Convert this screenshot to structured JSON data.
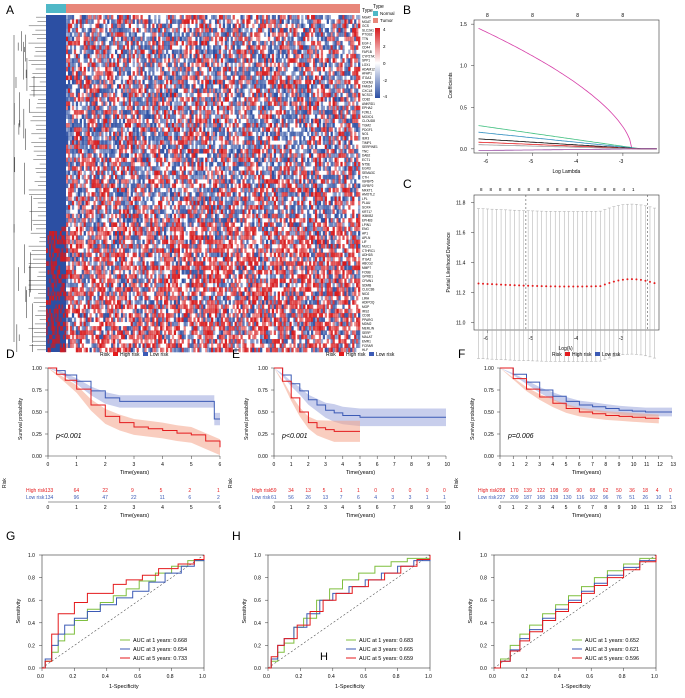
{
  "colors": {
    "high": "#e41a1c",
    "low": "#3b5ab5",
    "high_band": "#f4a48a",
    "low_band": "#9aa6dc",
    "hm_red": "#d7191c",
    "hm_blue": "#2c4fa3",
    "normal": "#4fb8c7",
    "tumor": "#e8877a",
    "roc_green": "#7fbf3f",
    "roc_blue": "#3b5ab5",
    "roc_red": "#e41a1c"
  },
  "panel_labels": [
    "A",
    "B",
    "C",
    "D",
    "E",
    "F",
    "G",
    "H",
    "I"
  ],
  "heatmap": {
    "type_label": "Type",
    "legend_normal": "Normal",
    "legend_tumor": "Tumor",
    "scale_ticks": [
      "4",
      "2",
      "0",
      "-2",
      "-4"
    ],
    "n_rows": 78,
    "n_cols": 150,
    "normal_cols": 13,
    "genes": [
      "MGAT",
      "MGAT",
      "GCS",
      "SLC2A1",
      "PTGS2",
      "TTN",
      "EGF-1",
      "CD44",
      "FAP1B",
      "CYP27A1",
      "SPP1",
      "LOX1",
      "ADAM12",
      "AFAP1",
      "ITGA3",
      "CDKN3",
      "FAM14",
      "CXCL8",
      "NCSC1",
      "CD82",
      "ANKRD1",
      "EPHA2",
      "F2RL1",
      "MOXD1",
      "CLOUD8",
      "TGM2",
      "PDGF1",
      "NO1",
      "IER3",
      "TIMP1",
      "SERPINE1",
      "TNC",
      "DAB2",
      "ECT1",
      "NT5E",
      "EGR3",
      "SEMA3C",
      "CTH",
      "IGFBP5",
      "IGFBP2",
      "MKKT1",
      "AMOTL2",
      "LPL",
      "PLAU",
      "SOX4",
      "KRT17",
      "IKBKB2",
      "EPHB3",
      "LPIN1",
      "ENG",
      "AP1",
      "APLN",
      "LIF",
      "MUC1",
      "CTHRC1",
      "ADH1B",
      "ITGA2",
      "ABCG2",
      "MMP7",
      "FOSB",
      "GPRD1",
      "CFMN1",
      "SDMB",
      "CLEC3B",
      "NID2",
      "LIRA",
      "ADIPOQ",
      "MGP",
      "IRS2",
      "CD36",
      "PPARG",
      "MDM2",
      "MERLIN",
      "SERP",
      "MALAT",
      "EMR1",
      "FCRAR",
      "HLF"
    ]
  },
  "lasso": {
    "coef_xlabel": "Log Lambda",
    "coef_ylabel": "Coefficients",
    "coef_top_ticks": [
      "8",
      "8",
      "8",
      "8"
    ],
    "coef_xticks": [
      "-6",
      "-5",
      "-4",
      "-3"
    ],
    "coef_yticks": [
      "1.5",
      "1.0",
      "0.5",
      "0.0"
    ],
    "cv_xlabel": "Log(λ)",
    "cv_ylabel": "Partial Likelihood Deviance",
    "cv_top_ticks": [
      "8",
      "8",
      "8",
      "8",
      "8",
      "8",
      "8",
      "8",
      "8",
      "8",
      "8",
      "8",
      "8",
      "8",
      "8",
      "4",
      "1"
    ],
    "cv_xticks": [
      "-6",
      "-5",
      "-4",
      "-3"
    ],
    "cv_yticks": [
      "11.8",
      "11.6",
      "11.4",
      "11.2",
      "11.0"
    ]
  },
  "km": [
    {
      "legend_title": "Risk",
      "legend_high": "High risk",
      "legend_low": "Low risk",
      "ylabel": "Survival probability",
      "xlabel": "Time(years)",
      "pvalue": "p<0.001",
      "yticks": [
        "1.00",
        "0.75",
        "0.50",
        "0.25",
        "0.00"
      ],
      "xticks": [
        "0",
        "1",
        "2",
        "3",
        "4",
        "5",
        "6"
      ],
      "xmax": 6,
      "high_curve": [
        [
          0,
          1
        ],
        [
          0.3,
          0.93
        ],
        [
          0.6,
          0.86
        ],
        [
          1,
          0.76
        ],
        [
          1.5,
          0.58
        ],
        [
          2,
          0.45
        ],
        [
          2.5,
          0.38
        ],
        [
          3,
          0.33
        ],
        [
          3.5,
          0.31
        ],
        [
          4,
          0.29
        ],
        [
          4.5,
          0.26
        ],
        [
          5,
          0.24
        ],
        [
          5.5,
          0.17
        ],
        [
          6,
          0.1
        ]
      ],
      "low_curve": [
        [
          0,
          1
        ],
        [
          0.3,
          0.97
        ],
        [
          0.6,
          0.92
        ],
        [
          1,
          0.85
        ],
        [
          1.5,
          0.74
        ],
        [
          2,
          0.66
        ],
        [
          2.5,
          0.62
        ],
        [
          3,
          0.62
        ],
        [
          3.5,
          0.62
        ],
        [
          4,
          0.62
        ],
        [
          4.5,
          0.62
        ],
        [
          5,
          0.62
        ],
        [
          5.8,
          0.62
        ],
        [
          5.8,
          0.42
        ],
        [
          6,
          0.42
        ]
      ],
      "high_band": 0.09,
      "low_band": 0.07,
      "table_label": "Risk",
      "table_high_label": "High risk",
      "table_low_label": "Low risk",
      "table_high": [
        "133",
        "64",
        "22",
        "9",
        "5",
        "2",
        "1"
      ],
      "table_low": [
        "134",
        "96",
        "47",
        "22",
        "11",
        "6",
        "2"
      ],
      "table_xlabel": "Time(years)"
    },
    {
      "legend_title": "Risk",
      "legend_high": "High risk",
      "legend_low": "Low risk",
      "ylabel": "Survival probability",
      "xlabel": "Time(years)",
      "pvalue": "p<0.001",
      "yticks": [
        "1.00",
        "0.75",
        "0.50",
        "0.25",
        "0.00"
      ],
      "xticks": [
        "0",
        "1",
        "2",
        "3",
        "4",
        "5",
        "6",
        "7",
        "8",
        "9",
        "10"
      ],
      "xmax": 10,
      "high_curve": [
        [
          0,
          1
        ],
        [
          0.5,
          0.85
        ],
        [
          1,
          0.66
        ],
        [
          1.5,
          0.5
        ],
        [
          2,
          0.38
        ],
        [
          2.5,
          0.32
        ],
        [
          3,
          0.3
        ],
        [
          3.5,
          0.28
        ],
        [
          4,
          0.28
        ],
        [
          5,
          0.28
        ]
      ],
      "low_curve": [
        [
          0,
          1
        ],
        [
          0.5,
          0.92
        ],
        [
          1,
          0.82
        ],
        [
          1.5,
          0.74
        ],
        [
          2,
          0.64
        ],
        [
          2.5,
          0.58
        ],
        [
          3,
          0.52
        ],
        [
          3.5,
          0.49
        ],
        [
          4,
          0.46
        ],
        [
          5,
          0.44
        ],
        [
          6,
          0.44
        ],
        [
          8,
          0.44
        ],
        [
          10,
          0.44
        ]
      ],
      "high_band": 0.12,
      "low_band": 0.1,
      "table_label": "Risk",
      "table_high_label": "High risk",
      "table_low_label": "Low risk",
      "table_high": [
        "59",
        "34",
        "13",
        "5",
        "1",
        "1",
        "0",
        "0",
        "0",
        "0",
        "0"
      ],
      "table_low": [
        "61",
        "56",
        "26",
        "13",
        "7",
        "6",
        "4",
        "3",
        "3",
        "1",
        "1"
      ],
      "table_xlabel": "Time(years)"
    },
    {
      "legend_title": "Risk",
      "legend_high": "High risk",
      "legend_low": "Low risk",
      "ylabel": "Survival probability",
      "xlabel": "Time(years)",
      "pvalue": "p=0.006",
      "yticks": [
        "1.00",
        "0.75",
        "0.50",
        "0.25",
        "0.00"
      ],
      "xticks": [
        "0",
        "1",
        "2",
        "3",
        "4",
        "5",
        "6",
        "7",
        "8",
        "9",
        "10",
        "11",
        "12",
        "13"
      ],
      "xmax": 13,
      "high_curve": [
        [
          0,
          1
        ],
        [
          1,
          0.88
        ],
        [
          2,
          0.76
        ],
        [
          3,
          0.67
        ],
        [
          4,
          0.6
        ],
        [
          5,
          0.54
        ],
        [
          6,
          0.5
        ],
        [
          7,
          0.48
        ],
        [
          8,
          0.46
        ],
        [
          9,
          0.45
        ],
        [
          10,
          0.44
        ],
        [
          11,
          0.43
        ],
        [
          12,
          0.42
        ]
      ],
      "low_curve": [
        [
          0,
          1
        ],
        [
          1,
          0.93
        ],
        [
          2,
          0.84
        ],
        [
          3,
          0.75
        ],
        [
          4,
          0.68
        ],
        [
          5,
          0.62
        ],
        [
          6,
          0.58
        ],
        [
          7,
          0.56
        ],
        [
          8,
          0.54
        ],
        [
          9,
          0.52
        ],
        [
          10,
          0.51
        ],
        [
          11,
          0.5
        ],
        [
          12,
          0.5
        ],
        [
          13,
          0.5
        ]
      ],
      "high_band": 0.05,
      "low_band": 0.05,
      "table_label": "Risk",
      "table_high_label": "High risk",
      "table_low_label": "Low risk",
      "table_high": [
        "208",
        "170",
        "139",
        "122",
        "108",
        "99",
        "90",
        "68",
        "62",
        "50",
        "36",
        "18",
        "4",
        "0"
      ],
      "table_low": [
        "227",
        "209",
        "187",
        "168",
        "139",
        "130",
        "116",
        "102",
        "96",
        "76",
        "51",
        "26",
        "10",
        "1"
      ],
      "table_xlabel": "Time(years)"
    }
  ],
  "roc": [
    {
      "xlabel": "1-Specificity",
      "ylabel": "Sensitivity",
      "ticks": [
        "0.0",
        "0.2",
        "0.4",
        "0.6",
        "0.8",
        "1.0"
      ],
      "legend": [
        "AUC at 1 years: 0.668",
        "AUC at 3 years: 0.654",
        "AUC at 5 years: 0.733"
      ],
      "curves": [
        [
          [
            0,
            0
          ],
          [
            0.02,
            0.06
          ],
          [
            0.06,
            0.14
          ],
          [
            0.1,
            0.24
          ],
          [
            0.14,
            0.3
          ],
          [
            0.2,
            0.42
          ],
          [
            0.28,
            0.52
          ],
          [
            0.36,
            0.58
          ],
          [
            0.44,
            0.64
          ],
          [
            0.52,
            0.7
          ],
          [
            0.6,
            0.77
          ],
          [
            0.7,
            0.84
          ],
          [
            0.8,
            0.9
          ],
          [
            0.9,
            0.95
          ],
          [
            1,
            1
          ]
        ],
        [
          [
            0,
            0
          ],
          [
            0.02,
            0.08
          ],
          [
            0.06,
            0.2
          ],
          [
            0.1,
            0.3
          ],
          [
            0.14,
            0.38
          ],
          [
            0.2,
            0.44
          ],
          [
            0.28,
            0.5
          ],
          [
            0.36,
            0.56
          ],
          [
            0.46,
            0.62
          ],
          [
            0.56,
            0.68
          ],
          [
            0.66,
            0.76
          ],
          [
            0.76,
            0.84
          ],
          [
            0.86,
            0.9
          ],
          [
            0.94,
            0.95
          ],
          [
            1,
            1
          ]
        ],
        [
          [
            0,
            0
          ],
          [
            0.02,
            0.06
          ],
          [
            0.06,
            0.3
          ],
          [
            0.1,
            0.48
          ],
          [
            0.14,
            0.48
          ],
          [
            0.2,
            0.58
          ],
          [
            0.28,
            0.66
          ],
          [
            0.36,
            0.66
          ],
          [
            0.44,
            0.74
          ],
          [
            0.52,
            0.78
          ],
          [
            0.62,
            0.82
          ],
          [
            0.72,
            0.88
          ],
          [
            0.84,
            0.92
          ],
          [
            0.94,
            0.96
          ],
          [
            1,
            1
          ]
        ]
      ]
    },
    {
      "xlabel": "1-Specificity",
      "ylabel": "Sensitivity",
      "ticks": [
        "0.0",
        "0.2",
        "0.4",
        "0.6",
        "0.8",
        "1.0"
      ],
      "legend": [
        "AUC at 1 years: 0.683",
        "AUC at 3 years: 0.665",
        "AUC at 5 years: 0.659"
      ],
      "curves": [
        [
          [
            0,
            0
          ],
          [
            0.02,
            0.06
          ],
          [
            0.06,
            0.14
          ],
          [
            0.1,
            0.22
          ],
          [
            0.16,
            0.36
          ],
          [
            0.22,
            0.44
          ],
          [
            0.3,
            0.6
          ],
          [
            0.38,
            0.7
          ],
          [
            0.46,
            0.78
          ],
          [
            0.56,
            0.84
          ],
          [
            0.66,
            0.9
          ],
          [
            0.76,
            0.94
          ],
          [
            0.86,
            0.97
          ],
          [
            1,
            1
          ]
        ],
        [
          [
            0,
            0
          ],
          [
            0.02,
            0.08
          ],
          [
            0.06,
            0.2
          ],
          [
            0.1,
            0.26
          ],
          [
            0.16,
            0.36
          ],
          [
            0.24,
            0.48
          ],
          [
            0.32,
            0.6
          ],
          [
            0.4,
            0.66
          ],
          [
            0.5,
            0.72
          ],
          [
            0.6,
            0.78
          ],
          [
            0.7,
            0.84
          ],
          [
            0.8,
            0.9
          ],
          [
            0.9,
            0.95
          ],
          [
            1,
            1
          ]
        ],
        [
          [
            0,
            0
          ],
          [
            0.02,
            0.1
          ],
          [
            0.06,
            0.2
          ],
          [
            0.1,
            0.26
          ],
          [
            0.18,
            0.38
          ],
          [
            0.26,
            0.5
          ],
          [
            0.34,
            0.6
          ],
          [
            0.42,
            0.66
          ],
          [
            0.52,
            0.72
          ],
          [
            0.62,
            0.78
          ],
          [
            0.72,
            0.84
          ],
          [
            0.82,
            0.9
          ],
          [
            0.92,
            0.96
          ],
          [
            1,
            1
          ]
        ]
      ]
    },
    {
      "xlabel": "1-Specificity",
      "ylabel": "Sensitivity",
      "ticks": [
        "0.0",
        "0.2",
        "0.4",
        "0.6",
        "0.8",
        "1.0"
      ],
      "legend": [
        "AUC at 1 years: 0.652",
        "AUC at 3 years: 0.621",
        "AUC at 5 years: 0.596"
      ],
      "curves": [
        [
          [
            0,
            0
          ],
          [
            0.04,
            0.08
          ],
          [
            0.1,
            0.2
          ],
          [
            0.16,
            0.3
          ],
          [
            0.22,
            0.38
          ],
          [
            0.3,
            0.48
          ],
          [
            0.38,
            0.56
          ],
          [
            0.46,
            0.64
          ],
          [
            0.54,
            0.72
          ],
          [
            0.62,
            0.8
          ],
          [
            0.7,
            0.86
          ],
          [
            0.8,
            0.92
          ],
          [
            0.9,
            0.97
          ],
          [
            1,
            1
          ]
        ],
        [
          [
            0,
            0
          ],
          [
            0.04,
            0.06
          ],
          [
            0.1,
            0.16
          ],
          [
            0.16,
            0.26
          ],
          [
            0.22,
            0.34
          ],
          [
            0.3,
            0.44
          ],
          [
            0.38,
            0.52
          ],
          [
            0.46,
            0.6
          ],
          [
            0.54,
            0.68
          ],
          [
            0.62,
            0.75
          ],
          [
            0.7,
            0.82
          ],
          [
            0.8,
            0.89
          ],
          [
            0.9,
            0.95
          ],
          [
            1,
            1
          ]
        ],
        [
          [
            0,
            0
          ],
          [
            0.04,
            0.06
          ],
          [
            0.1,
            0.15
          ],
          [
            0.16,
            0.24
          ],
          [
            0.22,
            0.32
          ],
          [
            0.3,
            0.42
          ],
          [
            0.38,
            0.5
          ],
          [
            0.46,
            0.58
          ],
          [
            0.54,
            0.66
          ],
          [
            0.62,
            0.73
          ],
          [
            0.7,
            0.8
          ],
          [
            0.8,
            0.87
          ],
          [
            0.9,
            0.94
          ],
          [
            1,
            1
          ]
        ]
      ]
    }
  ]
}
